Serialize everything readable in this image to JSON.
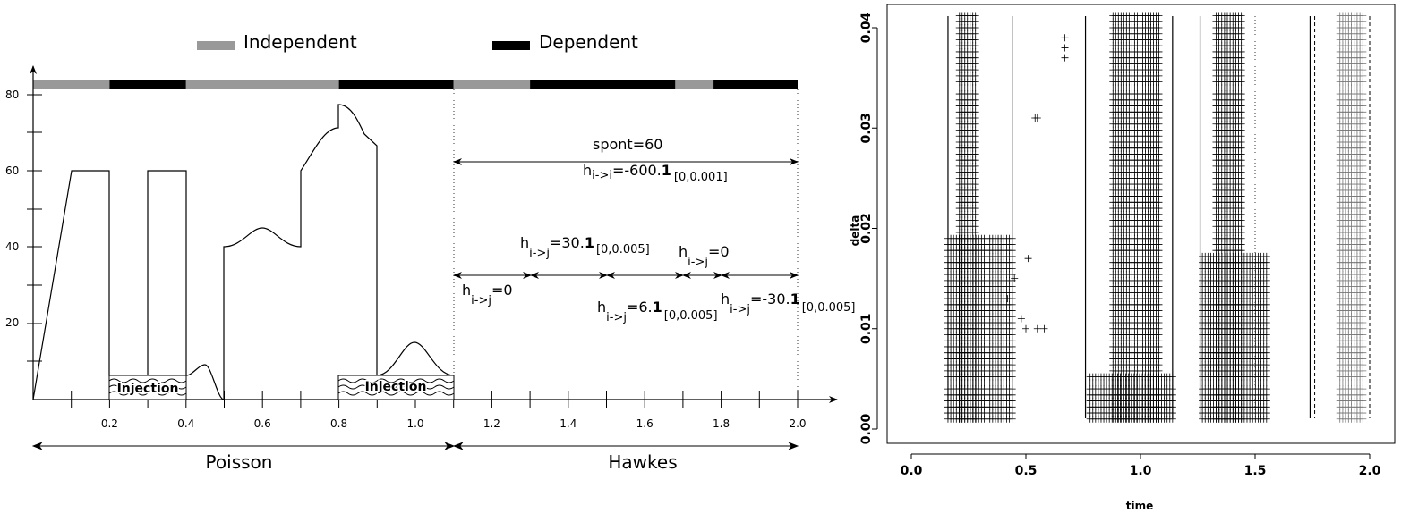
{
  "left_chart": {
    "legend": {
      "independent": "Independent",
      "dependent": "Dependent"
    },
    "colors": {
      "independent": "#999999",
      "dependent": "#000000"
    },
    "y_ticks": [
      "20",
      "40",
      "60",
      "80"
    ],
    "x_ticks": [
      "0.2",
      "0.4",
      "0.6",
      "0.8",
      "1.0",
      "1.2",
      "1.4",
      "1.6",
      "1.8",
      "2.0"
    ],
    "regime_bar": [
      {
        "from": 0.0,
        "to": 0.2,
        "kind": "independent"
      },
      {
        "from": 0.2,
        "to": 0.4,
        "kind": "dependent"
      },
      {
        "from": 0.4,
        "to": 0.8,
        "kind": "independent"
      },
      {
        "from": 0.8,
        "to": 1.1,
        "kind": "dependent"
      },
      {
        "from": 1.1,
        "to": 1.3,
        "kind": "independent"
      },
      {
        "from": 1.3,
        "to": 1.68,
        "kind": "dependent"
      },
      {
        "from": 1.68,
        "to": 1.78,
        "kind": "independent"
      },
      {
        "from": 1.78,
        "to": 2.0,
        "kind": "dependent"
      }
    ],
    "injection_label": "Injection",
    "poisson_label": "Poisson",
    "hawkes_label": "Hawkes",
    "spont": "spont=60",
    "h_ii_main": "h",
    "h_ii_sub": "i->i",
    "h_ii_val": "=-600.",
    "h_ii_bold": "1",
    "h_ii_int": "[0,0.001]",
    "h_ij_sub": "i->j",
    "h_ij_30_val": "=30.",
    "h_ij_30_int": "[0,0.005]",
    "h_ij_zero": "=0",
    "h_ij_6_val": "=6.",
    "h_ij_6_int": "[0,0.005]",
    "h_ij_m30_val": "=-30.",
    "h_ij_m30_int": "[0,0.005]",
    "bold_one": "1"
  },
  "chart_data": {
    "type": "scatter",
    "xlabel": "time",
    "ylabel": "delta",
    "xlim": [
      0.0,
      2.0
    ],
    "ylim": [
      0.0,
      0.04
    ],
    "x_ticks": [
      "0.0",
      "0.5",
      "1.0",
      "1.5",
      "2.0"
    ],
    "y_ticks": [
      "0.00",
      "0.01",
      "0.02",
      "0.03",
      "0.04"
    ],
    "solid_vertical_lines": [
      0.16,
      0.44,
      0.76,
      1.14,
      1.26,
      1.74
    ],
    "dashed_vertical_lines": [
      1.76,
      2.0
    ],
    "dotted_vertical_lines": [
      1.5
    ],
    "clusters": [
      {
        "x_from": 0.21,
        "x_to": 0.28,
        "delta_max": 0.04,
        "color": "#000000"
      },
      {
        "x_from": 0.16,
        "x_to": 0.44,
        "delta_max": 0.018,
        "color": "#000000"
      },
      {
        "x_from": 0.88,
        "x_to": 1.08,
        "delta_max": 0.04,
        "color": "#000000"
      },
      {
        "x_from": 0.78,
        "x_to": 1.14,
        "delta_max": 0.004,
        "color": "#000000"
      },
      {
        "x_from": 1.33,
        "x_to": 1.44,
        "delta_max": 0.04,
        "color": "#000000"
      },
      {
        "x_from": 1.27,
        "x_to": 1.55,
        "delta_max": 0.016,
        "color": "#000000"
      },
      {
        "x_from": 1.87,
        "x_to": 1.97,
        "delta_max": 0.04,
        "color": "#777777"
      }
    ],
    "isolated_points": [
      {
        "x": 0.67,
        "delta": 0.039
      },
      {
        "x": 0.67,
        "delta": 0.038
      },
      {
        "x": 0.67,
        "delta": 0.037
      },
      {
        "x": 0.54,
        "delta": 0.031
      },
      {
        "x": 0.55,
        "delta": 0.031
      },
      {
        "x": 0.51,
        "delta": 0.017
      },
      {
        "x": 0.48,
        "delta": 0.011
      },
      {
        "x": 0.5,
        "delta": 0.01
      },
      {
        "x": 0.55,
        "delta": 0.01
      },
      {
        "x": 0.58,
        "delta": 0.01
      },
      {
        "x": 0.42,
        "delta": 0.013
      },
      {
        "x": 0.45,
        "delta": 0.015
      }
    ]
  }
}
